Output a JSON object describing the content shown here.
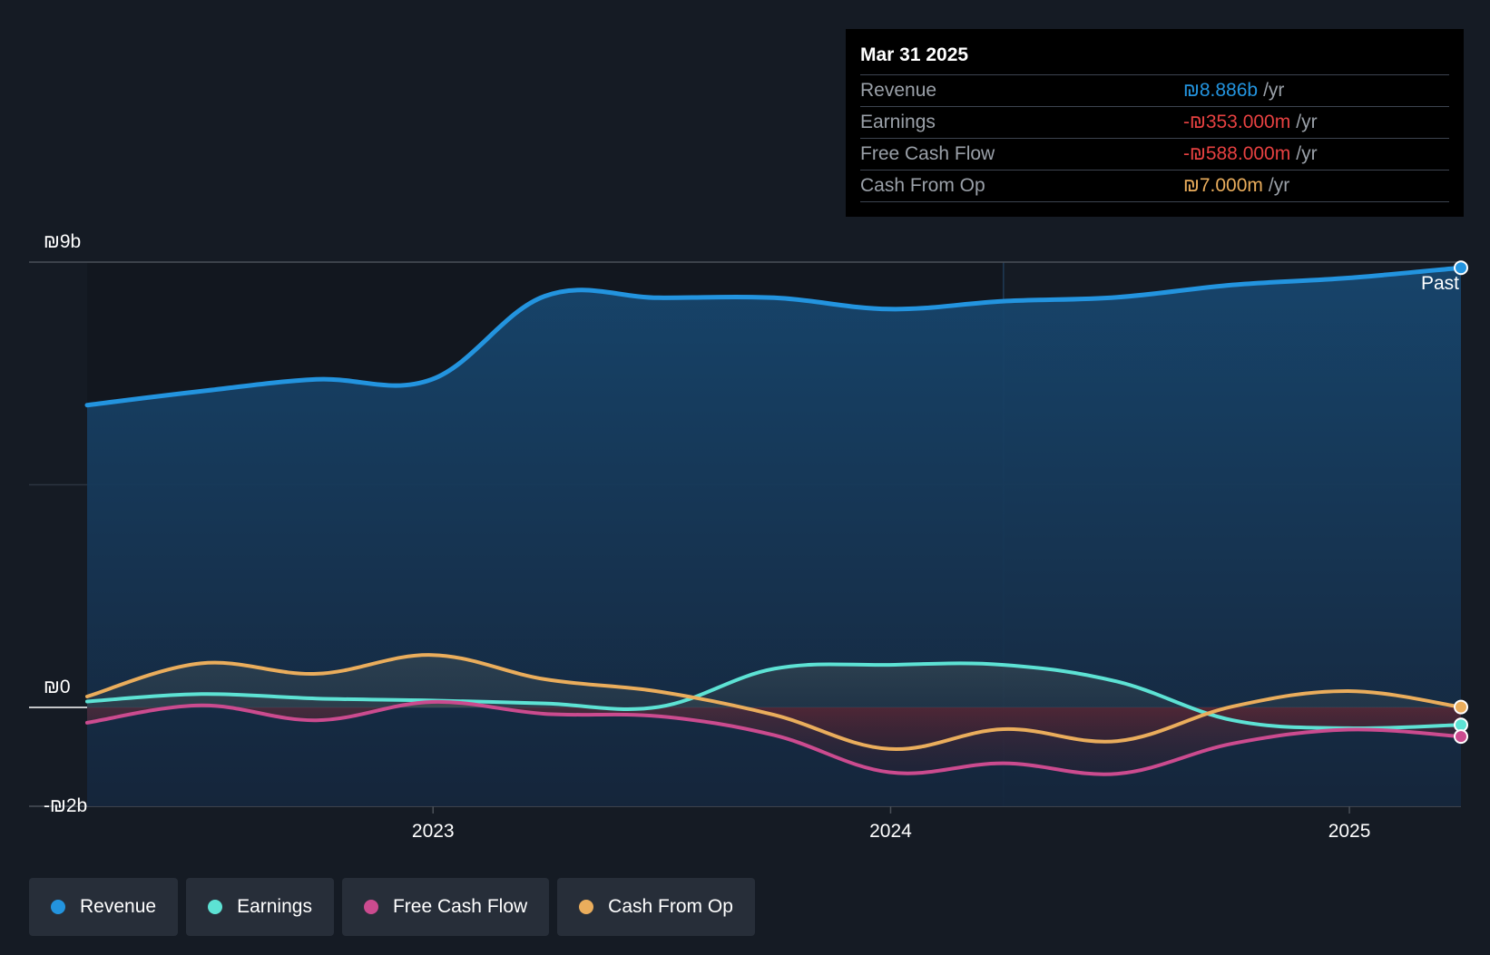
{
  "chart_data": {
    "type": "area",
    "y_tick_labels": [
      "₪9b",
      "₪0",
      "-₪2b"
    ],
    "x_tick_labels": [
      "2023",
      "2024",
      "2025"
    ],
    "ylim": [
      -2000,
      9000
    ],
    "y_unit": "₪m",
    "grid": true,
    "past_label": "Past",
    "x": [
      "2022-03-31",
      "2022-06-30",
      "2022-09-30",
      "2022-12-31",
      "2023-03-31",
      "2023-06-30",
      "2023-09-30",
      "2023-12-31",
      "2024-03-31",
      "2024-06-30",
      "2024-09-30",
      "2024-12-31",
      "2025-03-31"
    ],
    "series": [
      {
        "name": "Revenue",
        "color": "#2394df",
        "values": [
          6110,
          6390,
          6630,
          6630,
          8310,
          8280,
          8280,
          8050,
          8210,
          8290,
          8540,
          8680,
          8886
        ]
      },
      {
        "name": "Earnings",
        "color": "#5de2d4",
        "values": [
          120,
          270,
          180,
          140,
          80,
          10,
          780,
          860,
          860,
          520,
          -260,
          -420,
          -353
        ]
      },
      {
        "name": "Free Cash Flow",
        "color": "#cb4b8f",
        "values": [
          -310,
          40,
          -260,
          110,
          -130,
          -180,
          -560,
          -1310,
          -1130,
          -1340,
          -730,
          -450,
          -588
        ]
      },
      {
        "name": "Cash From Op",
        "color": "#eaad5c",
        "values": [
          220,
          890,
          680,
          1060,
          570,
          320,
          -150,
          -840,
          -440,
          -680,
          20,
          330,
          7
        ]
      }
    ],
    "highlight_date": "2024-03-31"
  },
  "tooltip": {
    "date": "Mar 31 2025",
    "rows": [
      {
        "label": "Revenue",
        "value": "₪8.886b",
        "unit": "/yr",
        "color": "#2394df"
      },
      {
        "label": "Earnings",
        "value": "-₪353.000m",
        "unit": "/yr",
        "color": "#e64141"
      },
      {
        "label": "Free Cash Flow",
        "value": "-₪588.000m",
        "unit": "/yr",
        "color": "#e64141"
      },
      {
        "label": "Cash From Op",
        "value": "₪7.000m",
        "unit": "/yr",
        "color": "#eaad5c"
      }
    ]
  },
  "legend": [
    {
      "label": "Revenue",
      "color": "#2394df"
    },
    {
      "label": "Earnings",
      "color": "#5de2d4"
    },
    {
      "label": "Free Cash Flow",
      "color": "#cb4b8f"
    },
    {
      "label": "Cash From Op",
      "color": "#eaad5c"
    }
  ]
}
